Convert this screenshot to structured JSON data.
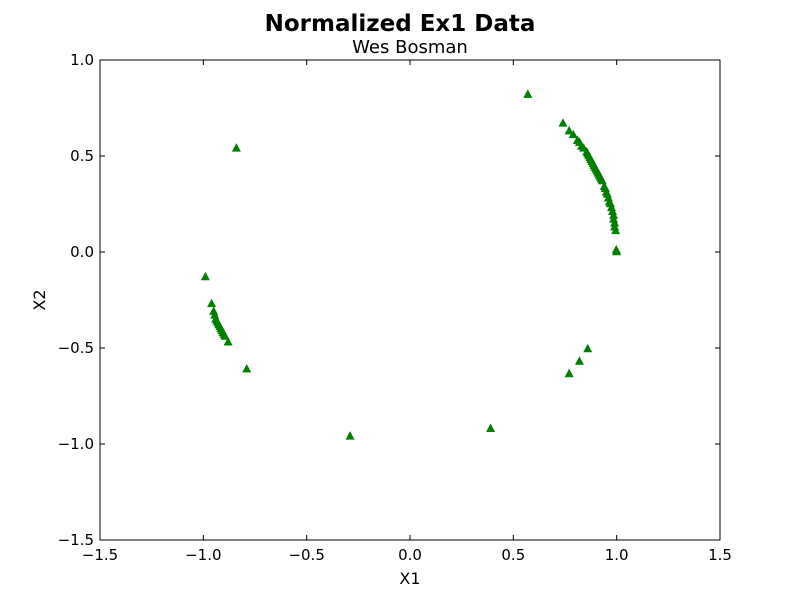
{
  "chart_data": {
    "type": "scatter",
    "title": "Normalized Ex1 Data",
    "subtitle": "Wes Bosman",
    "xlabel": "X1",
    "ylabel": "X2",
    "xlim": [
      -1.5,
      1.5
    ],
    "ylim": [
      -1.5,
      1.0
    ],
    "xticks": [
      -1.5,
      -1.0,
      -0.5,
      0.0,
      0.5,
      1.0,
      1.5
    ],
    "yticks": [
      -1.5,
      -1.0,
      -0.5,
      0.0,
      0.5,
      1.0
    ],
    "xtick_labels": [
      "−1.5",
      "−1.0",
      "−0.5",
      "0.0",
      "0.5",
      "1.0",
      "1.5"
    ],
    "ytick_labels": [
      "−1.5",
      "−1.0",
      "−0.5",
      "0.0",
      "0.5",
      "1.0"
    ],
    "grid": false,
    "marker": "triangle-up",
    "marker_color": "#007f00",
    "points": [
      [
        0.57,
        0.82
      ],
      [
        0.74,
        0.67
      ],
      [
        0.77,
        0.63
      ],
      [
        0.79,
        0.61
      ],
      [
        0.81,
        0.58
      ],
      [
        0.82,
        0.57
      ],
      [
        0.83,
        0.55
      ],
      [
        0.84,
        0.54
      ],
      [
        0.855,
        0.52
      ],
      [
        0.86,
        0.51
      ],
      [
        0.865,
        0.5
      ],
      [
        0.87,
        0.49
      ],
      [
        0.875,
        0.48
      ],
      [
        0.88,
        0.47
      ],
      [
        0.885,
        0.46
      ],
      [
        0.89,
        0.45
      ],
      [
        0.895,
        0.44
      ],
      [
        0.9,
        0.43
      ],
      [
        0.905,
        0.42
      ],
      [
        0.91,
        0.41
      ],
      [
        0.915,
        0.4
      ],
      [
        0.92,
        0.39
      ],
      [
        0.925,
        0.38
      ],
      [
        0.93,
        0.37
      ],
      [
        0.94,
        0.34
      ],
      [
        0.945,
        0.33
      ],
      [
        0.95,
        0.31
      ],
      [
        0.955,
        0.3
      ],
      [
        0.96,
        0.28
      ],
      [
        0.965,
        0.26
      ],
      [
        0.97,
        0.25
      ],
      [
        0.975,
        0.23
      ],
      [
        0.98,
        0.21
      ],
      [
        0.985,
        0.19
      ],
      [
        0.985,
        0.17
      ],
      [
        0.99,
        0.15
      ],
      [
        0.99,
        0.13
      ],
      [
        0.995,
        0.11
      ],
      [
        0.998,
        0.01
      ],
      [
        1.0,
        0.0
      ],
      [
        -0.84,
        0.54
      ],
      [
        -0.99,
        -0.13
      ],
      [
        -0.96,
        -0.27
      ],
      [
        -0.95,
        -0.31
      ],
      [
        -0.945,
        -0.33
      ],
      [
        -0.94,
        -0.35
      ],
      [
        -0.935,
        -0.36
      ],
      [
        -0.93,
        -0.37
      ],
      [
        -0.925,
        -0.38
      ],
      [
        -0.92,
        -0.39
      ],
      [
        -0.915,
        -0.4
      ],
      [
        -0.91,
        -0.41
      ],
      [
        -0.905,
        -0.42
      ],
      [
        -0.9,
        -0.43
      ],
      [
        -0.895,
        -0.44
      ],
      [
        -0.88,
        -0.47
      ],
      [
        -0.79,
        -0.61
      ],
      [
        -0.29,
        -0.96
      ],
      [
        0.39,
        -0.92
      ],
      [
        0.77,
        -0.635
      ],
      [
        0.82,
        -0.57
      ],
      [
        0.86,
        -0.505
      ]
    ]
  }
}
